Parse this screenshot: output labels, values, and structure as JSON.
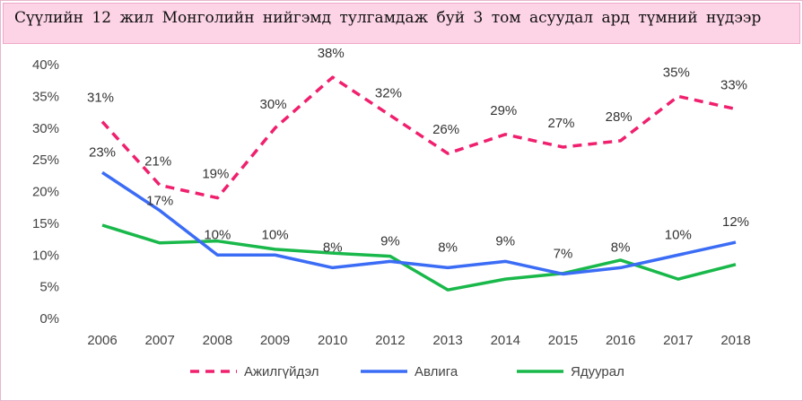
{
  "title": "Сүүлийн 12 жил Монголийн нийгэмд тулгамдаж буй 3 том асуудал ард түмний нүдээр",
  "chart_data": {
    "type": "line",
    "title": "Сүүлийн 12 жил Монголийн нийгэмд тулгамдаж буй 3 том асуудал ард түмний нүдээр",
    "x": [
      "2006",
      "2007",
      "2008",
      "2009",
      "2010",
      "2012",
      "2013",
      "2014",
      "2015",
      "2016",
      "2017",
      "2018"
    ],
    "ylim": [
      0,
      40
    ],
    "yticks": [
      "0%",
      "5%",
      "10%",
      "15%",
      "20%",
      "25%",
      "30%",
      "35%",
      "40%"
    ],
    "grid": false,
    "legend": "bottom",
    "series": [
      {
        "name": "Ажилгүйдэл",
        "color": "#f0206e",
        "dashed": true,
        "values": [
          31,
          21,
          19,
          30,
          38,
          32,
          26,
          29,
          27,
          28,
          35,
          33
        ],
        "labels": [
          "31%",
          "21%",
          "19%",
          "30%",
          "38%",
          "32%",
          "26%",
          "29%",
          "27%",
          "28%",
          "35%",
          "33%"
        ]
      },
      {
        "name": "Авлига",
        "color": "#3b6cf5",
        "dashed": false,
        "values": [
          23,
          17,
          10,
          10,
          8,
          9,
          8,
          9,
          7,
          8,
          10,
          12
        ],
        "labels": [
          "23%",
          "17%",
          "10%",
          "10%",
          "8%",
          "9%",
          "8%",
          "9%",
          "7%",
          "8%",
          "10%",
          "12%"
        ]
      },
      {
        "name": "Ядуурал",
        "color": "#19b84a",
        "dashed": false,
        "values": [
          14.7,
          11.9,
          12.2,
          10.9,
          10.3,
          9.8,
          4.5,
          6.2,
          7.1,
          9.2,
          6.2,
          8.5
        ],
        "labels": []
      }
    ]
  }
}
